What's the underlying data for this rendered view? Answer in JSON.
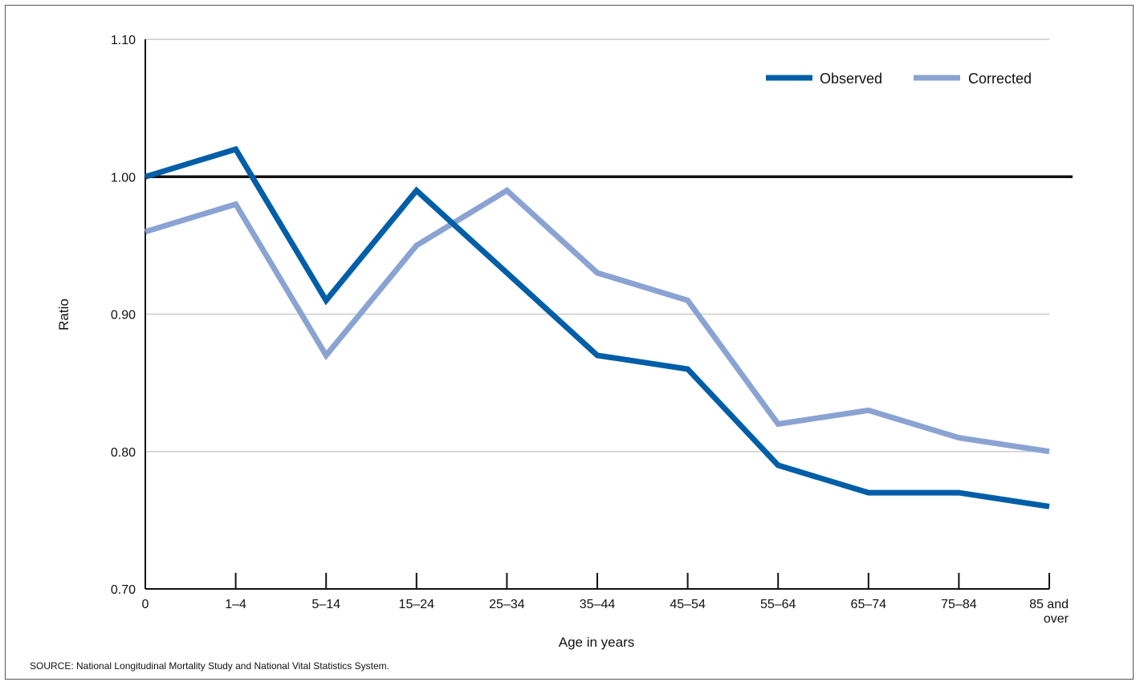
{
  "chart_data": {
    "type": "line",
    "categories": [
      "0",
      "1–4",
      "5–14",
      "15–24",
      "25–34",
      "35–44",
      "45–54",
      "55–64",
      "65–74",
      "75–84",
      "85 and over"
    ],
    "category_lines": [
      [
        "0"
      ],
      [
        "1–4"
      ],
      [
        "5–14"
      ],
      [
        "15–24"
      ],
      [
        "25–34"
      ],
      [
        "35–44"
      ],
      [
        "45–54"
      ],
      [
        "55–64"
      ],
      [
        "65–74"
      ],
      [
        "75–84"
      ],
      [
        "85 and",
        "over"
      ]
    ],
    "series": [
      {
        "name": "Observed",
        "color": "#005ea8",
        "values": [
          1.0,
          1.02,
          0.91,
          0.99,
          0.93,
          0.87,
          0.86,
          0.79,
          0.77,
          0.77,
          0.76
        ]
      },
      {
        "name": "Corrected",
        "color": "#8aa3d3",
        "values": [
          0.96,
          0.98,
          0.87,
          0.95,
          0.99,
          0.93,
          0.91,
          0.82,
          0.83,
          0.81,
          0.8
        ]
      }
    ],
    "reference_line": {
      "value": 1.0,
      "color": "#111111"
    },
    "ylim": [
      0.7,
      1.1
    ],
    "yticks": [
      "0.70",
      "0.80",
      "0.90",
      "1.00",
      "1.10"
    ],
    "xlabel": "Age in years",
    "ylabel": "Ratio",
    "grid": true,
    "legend_position": "top-right"
  },
  "source_note": "SOURCE: National Longitudinal Mortality Study and National Vital Statistics System."
}
